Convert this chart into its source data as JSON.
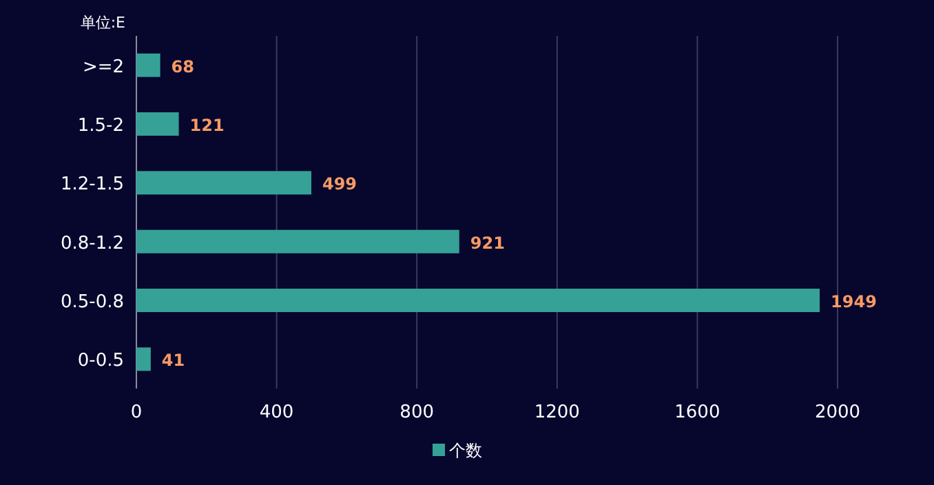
{
  "chart_data": {
    "type": "bar",
    "orientation": "horizontal",
    "ylabel": "单位:E",
    "categories": [
      ">=2",
      "1.5-2",
      "1.2-1.5",
      "0.8-1.2",
      "0.5-0.8",
      "0-0.5"
    ],
    "series": [
      {
        "name": "个数",
        "color": "#36a196",
        "values": [
          68,
          121,
          499,
          921,
          1949,
          41
        ]
      }
    ],
    "xlim": [
      0,
      2000
    ],
    "xticks": [
      0,
      400,
      800,
      1200,
      1600,
      2000
    ],
    "grid": "x",
    "legend": "bottom",
    "data_labels": true
  }
}
